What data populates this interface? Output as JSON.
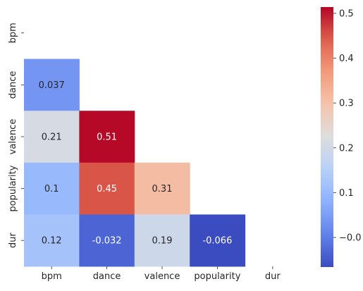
{
  "chart_data": {
    "type": "heatmap",
    "title": "",
    "xlabel": "",
    "ylabel": "",
    "x_labels": [
      "bpm",
      "dance",
      "valence",
      "popularity",
      "dur"
    ],
    "y_labels": [
      "bpm",
      "dance",
      "valence",
      "popularity",
      "dur"
    ],
    "mask": "upper triangle incl. diagonal",
    "cells": [
      {
        "row": "dance",
        "col": "bpm",
        "value": 0.037,
        "label": "0.037"
      },
      {
        "row": "valence",
        "col": "bpm",
        "value": 0.21,
        "label": "0.21"
      },
      {
        "row": "valence",
        "col": "dance",
        "value": 0.51,
        "label": "0.51"
      },
      {
        "row": "popularity",
        "col": "bpm",
        "value": 0.1,
        "label": "0.1"
      },
      {
        "row": "popularity",
        "col": "dance",
        "value": 0.45,
        "label": "0.45"
      },
      {
        "row": "popularity",
        "col": "valence",
        "value": 0.31,
        "label": "0.31"
      },
      {
        "row": "dur",
        "col": "bpm",
        "value": 0.12,
        "label": "0.12"
      },
      {
        "row": "dur",
        "col": "dance",
        "value": -0.032,
        "label": "-0.032"
      },
      {
        "row": "dur",
        "col": "valence",
        "value": 0.19,
        "label": "0.19"
      },
      {
        "row": "dur",
        "col": "popularity",
        "value": -0.066,
        "label": "-0.066"
      }
    ],
    "colormap": "coolwarm",
    "colorbar": {
      "min": -0.066,
      "max": 0.514,
      "ticks": [
        -0.0,
        0.1,
        0.2,
        0.3,
        0.4,
        0.5
      ],
      "tick_labels": [
        "−0.0",
        "0.1",
        "0.2",
        "0.3",
        "0.4",
        "0.5"
      ]
    },
    "annotation_colors": {
      "dark_text": "#262626",
      "light_text": "#ffffff"
    }
  }
}
